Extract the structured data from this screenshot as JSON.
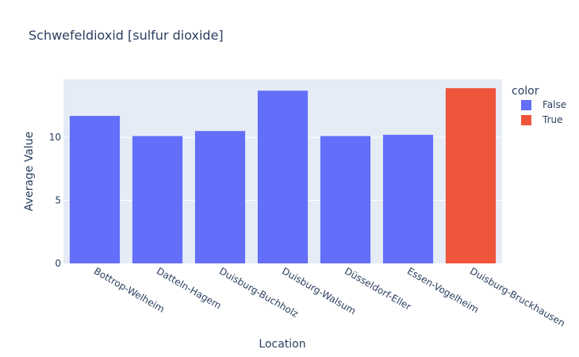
{
  "chart_data": {
    "type": "bar",
    "title": "Schwefeldioxid [sulfur dioxide]",
    "xlabel": "Location",
    "ylabel": "Average Value",
    "categories": [
      "Bottrop-Welheim",
      "Datteln-Hagem",
      "Duisburg-Buchholz",
      "Duisburg-Walsum",
      "Düsseldorf-Eller",
      "Essen-Vogelheim",
      "Duisburg-Bruckhausen"
    ],
    "values": [
      11.7,
      10.1,
      10.5,
      13.7,
      10.1,
      10.2,
      13.9
    ],
    "color_group": [
      "False",
      "False",
      "False",
      "False",
      "False",
      "False",
      "True"
    ],
    "ylim": [
      0,
      14.6
    ],
    "yticks": [
      0,
      5,
      10
    ],
    "grid": true,
    "legend": {
      "title": "color",
      "placement": "top-right",
      "entries": [
        {
          "label": "False",
          "color": "#636efa"
        },
        {
          "label": "True",
          "color": "#ef553b"
        }
      ]
    },
    "colors": {
      "False": "#636efa",
      "True": "#ef553b",
      "plot_bg": "#e5ecf6",
      "text": "#2a3f5f"
    }
  }
}
